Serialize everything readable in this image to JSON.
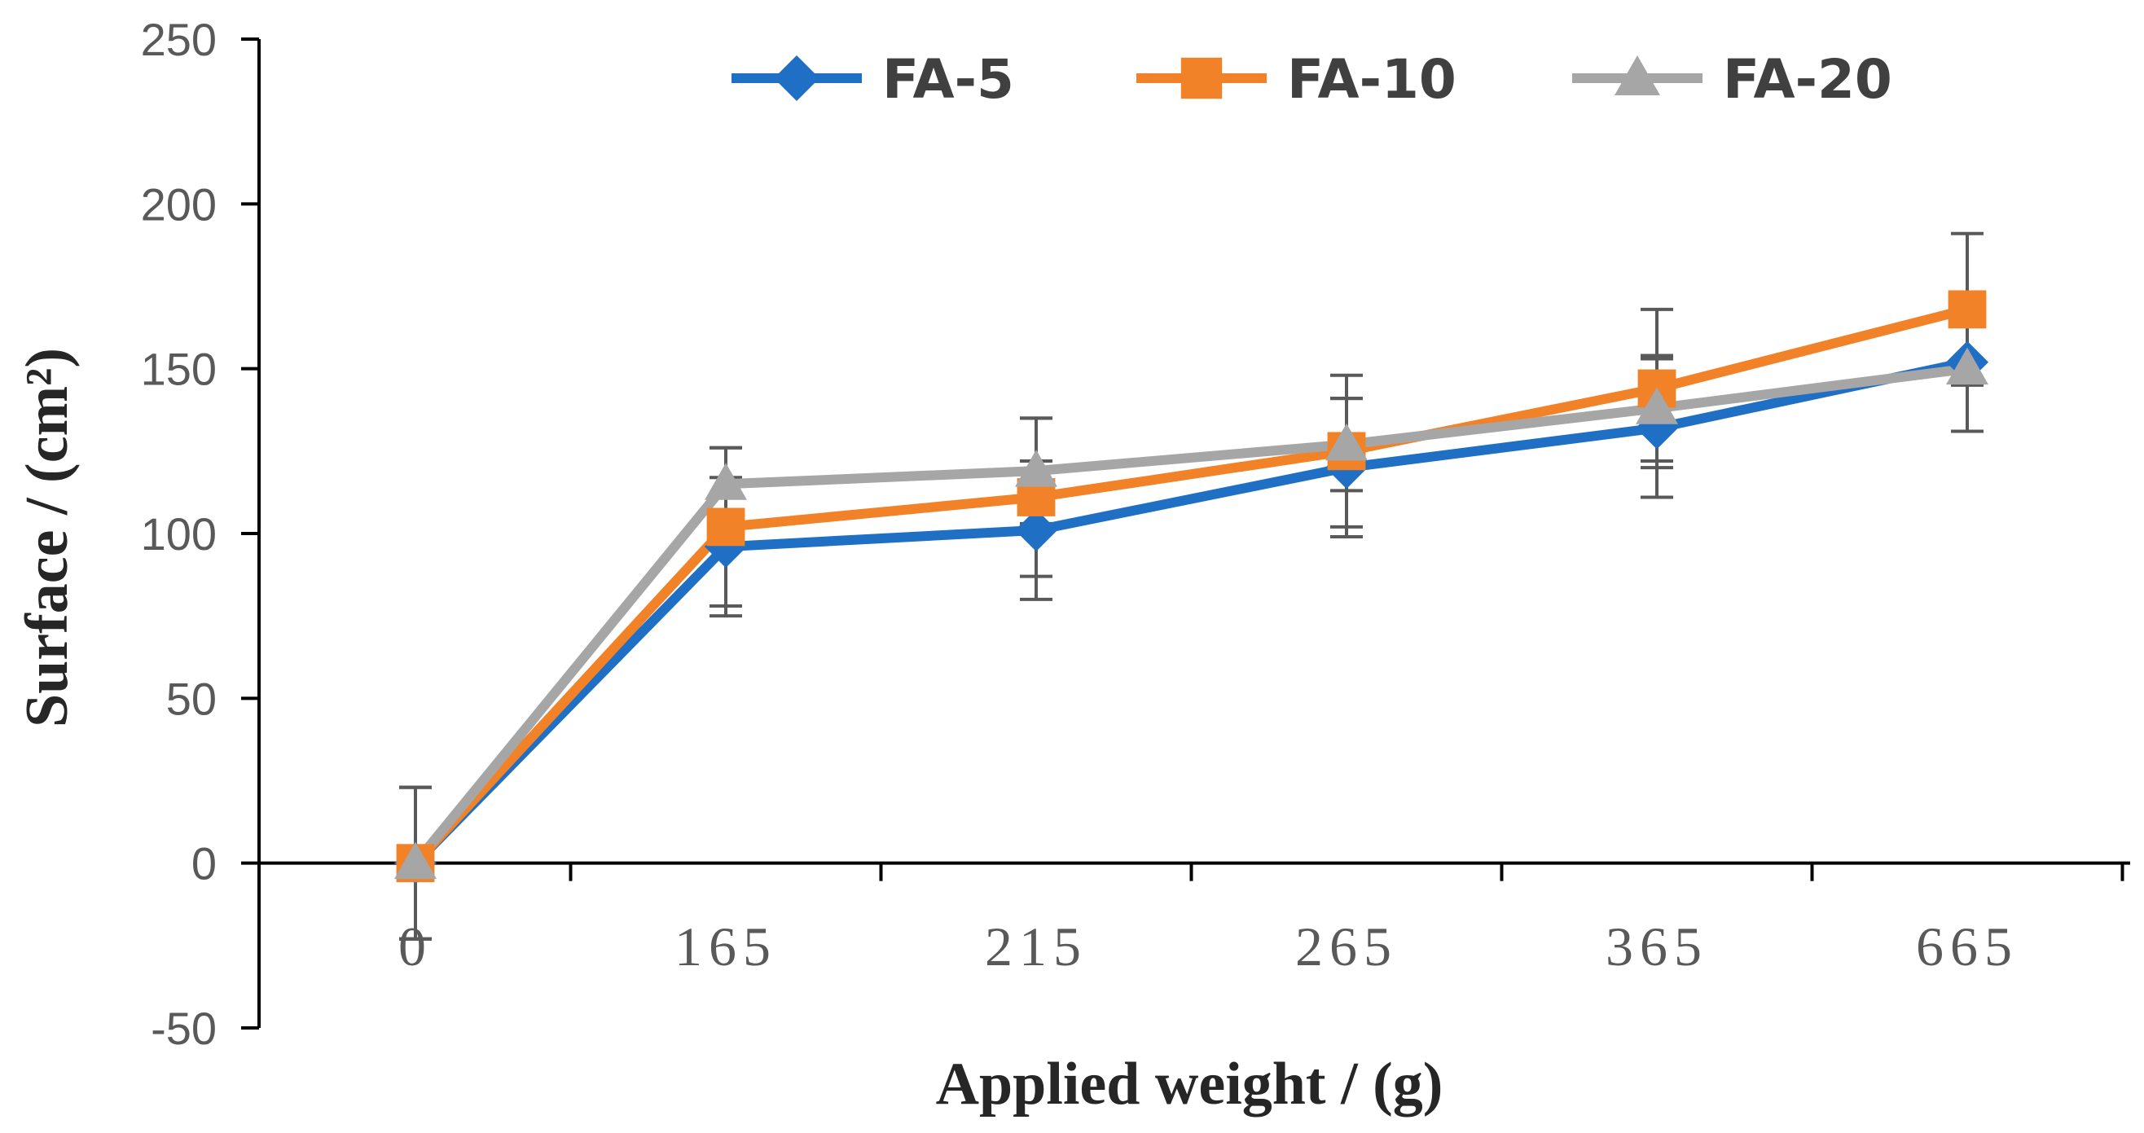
{
  "chart_data": {
    "type": "line",
    "title": "",
    "xlabel": "Applied weight / (g)",
    "ylabel": "Surface / (cm²)",
    "categories": [
      "0",
      "165",
      "215",
      "265",
      "365",
      "665"
    ],
    "ylim": [
      -50,
      250
    ],
    "yticks": [
      -50,
      0,
      50,
      100,
      150,
      200,
      250
    ],
    "legend_position": "top",
    "series": [
      {
        "name": "FA-5",
        "color": "#1F6FC5",
        "marker": "diamond",
        "values": [
          0,
          96,
          101,
          120,
          132,
          152
        ],
        "errors": [
          23,
          21,
          21,
          21,
          21,
          21
        ]
      },
      {
        "name": "FA-10",
        "color": "#F28228",
        "marker": "square",
        "values": [
          0,
          102,
          111,
          125,
          144,
          168
        ],
        "errors": [
          23,
          24,
          24,
          23,
          24,
          23
        ]
      },
      {
        "name": "FA-20",
        "color": "#A6A6A6",
        "marker": "triangle",
        "values": [
          0,
          115,
          119,
          127,
          138,
          150
        ],
        "errors": [
          23,
          11,
          16,
          14,
          16,
          19
        ]
      }
    ]
  }
}
